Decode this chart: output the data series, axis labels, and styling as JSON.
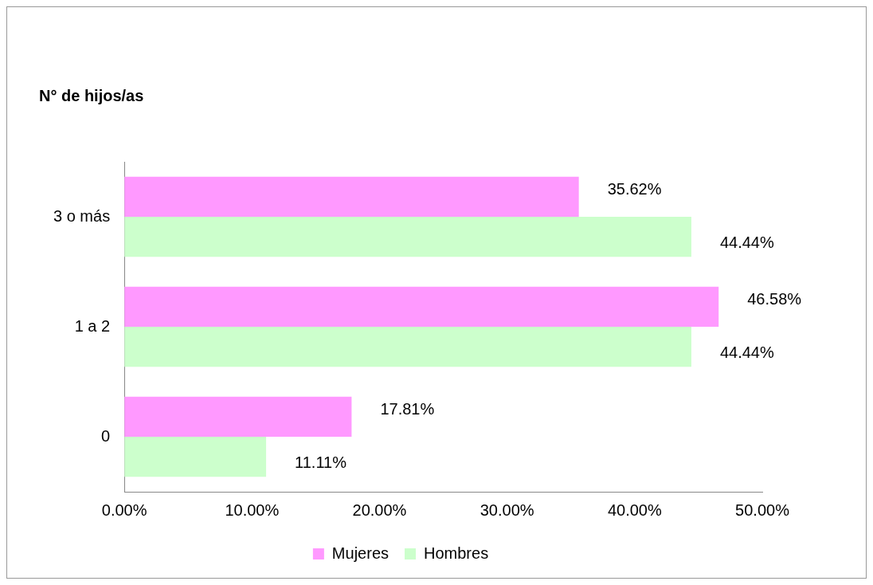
{
  "chart_data": {
    "type": "bar",
    "orientation": "horizontal",
    "ylabel": "N° de hijos/as",
    "categories": [
      "3 o más",
      "1 a 2",
      "0"
    ],
    "series": [
      {
        "name": "Mujeres",
        "color": "#ff99ff",
        "values": [
          35.62,
          46.58,
          17.81
        ],
        "value_labels": [
          "35.62%",
          "46.58%",
          "17.81%"
        ]
      },
      {
        "name": "Hombres",
        "color": "#ccffcc",
        "values": [
          44.44,
          44.44,
          11.11
        ],
        "value_labels": [
          "44.44%",
          "44.44%",
          "11.11%"
        ]
      }
    ],
    "xlim": [
      0,
      50
    ],
    "xticks": [
      {
        "value": 0,
        "label": "0.00%"
      },
      {
        "value": 10,
        "label": "10.00%"
      },
      {
        "value": 20,
        "label": "20.00%"
      },
      {
        "value": 30,
        "label": "30.00%"
      },
      {
        "value": 40,
        "label": "40.00%"
      },
      {
        "value": 50,
        "label": "50.00%"
      }
    ],
    "grid": false,
    "legend": "bottom"
  }
}
